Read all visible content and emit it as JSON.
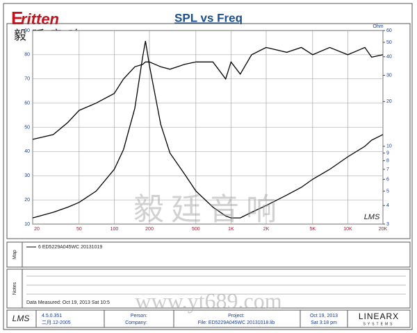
{
  "header": {
    "logo": "ritten",
    "logo_cn": "毅廷音响"
  },
  "chart_data": {
    "type": "line",
    "title": "SPL vs Freq",
    "y2_label": "Ohm",
    "corner_mark": "LMS",
    "xlog": true,
    "y2log": true,
    "grid": true,
    "x": [
      20,
      30,
      40,
      50,
      70,
      100,
      120,
      150,
      175,
      185,
      200,
      250,
      300,
      400,
      500,
      700,
      900,
      1000,
      1200,
      1500,
      2000,
      3000,
      4000,
      5000,
      7000,
      10000,
      14000,
      16000,
      20000
    ],
    "xlim": [
      20,
      20000
    ],
    "xticks": [
      20,
      50,
      100,
      200,
      500,
      {
        "value": 1000,
        "label": "1K"
      },
      {
        "value": 2000,
        "label": "2K"
      },
      {
        "value": 5000,
        "label": "5K"
      },
      {
        "value": 10000,
        "label": "10K"
      },
      {
        "value": 20000,
        "label": "20K"
      }
    ],
    "ylim": [
      10,
      90
    ],
    "yticks": [
      10,
      20,
      30,
      40,
      50,
      60,
      70,
      80,
      90
    ],
    "y2lim": [
      3,
      60
    ],
    "y2ticks": [
      3,
      4,
      5,
      6,
      7,
      8,
      9,
      10,
      20,
      30,
      40,
      50,
      60
    ],
    "series": [
      {
        "name": "6  ED5229A045WC 20131019",
        "color": "#000000",
        "values": [
          45,
          47,
          52,
          57,
          60,
          64,
          70,
          75,
          76,
          77,
          77,
          75,
          74,
          76,
          77,
          77,
          70,
          77,
          72,
          80,
          83,
          81,
          83,
          80,
          83,
          80,
          83,
          79,
          80
        ]
      },
      {
        "color": "#000000",
        "axis": "y2",
        "values": [
          3.3,
          3.6,
          3.9,
          4.2,
          5,
          7,
          9.5,
          18,
          40,
          51,
          35,
          14,
          9,
          6.5,
          5,
          3.9,
          3.4,
          3.3,
          3.3,
          3.6,
          4,
          4.7,
          5.3,
          6,
          7,
          8.5,
          10,
          11,
          12
        ]
      }
    ]
  },
  "panels": {
    "map": "Map",
    "notes": "Notes",
    "measured": "Data Measured: Oct 19, 2013  Sat 10:5"
  },
  "footer": {
    "lms": "LMS",
    "version": "4.5.0.351",
    "date": "二月.12-2005",
    "person": "Person:",
    "company": "Company:",
    "project": "Project:",
    "file": "File: ED5229A045WC 20131018.lib",
    "day": "Oct 19, 2013",
    "time": "Sat  3:18 pm",
    "brand": "LINEARX",
    "brand_sub": "SYSTEMS"
  },
  "watermark": {
    "cn": "毅廷音响",
    "url": "www.yt689.com"
  }
}
